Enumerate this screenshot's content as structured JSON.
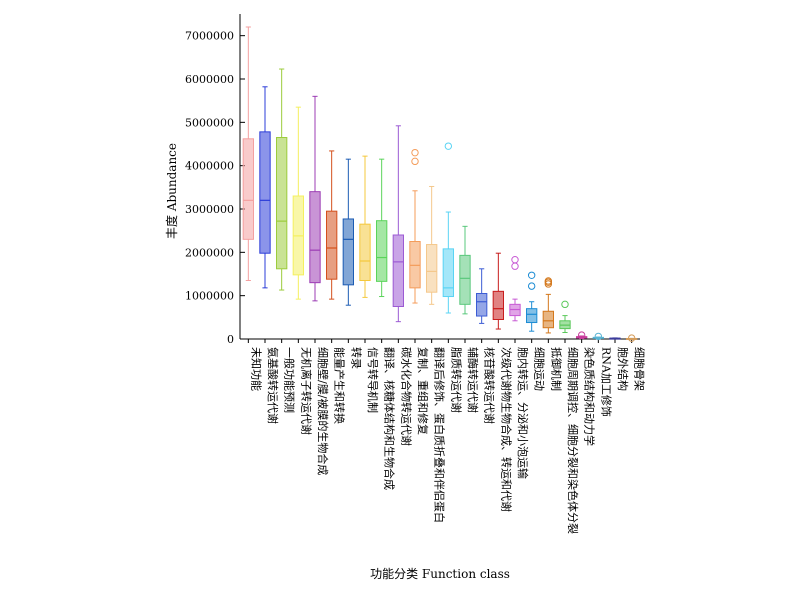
{
  "chart_data": {
    "type": "box",
    "xlabel": "功能分类 Function class",
    "ylabel": "丰度 Abundance",
    "ylim": [
      0,
      7500000
    ],
    "yticks": [
      0,
      1000000,
      2000000,
      3000000,
      4000000,
      5000000,
      6000000,
      7000000
    ],
    "grid": false,
    "legend": "none",
    "categories": [
      "未知功能",
      "氨基酸转运代谢",
      "一般功能预测",
      "无机离子转运代谢",
      "细胞壁/膜/被膜的生物合成",
      "能量产生和转换",
      "转录",
      "信号转导机制",
      "翻译、核糖体结构和生物合成",
      "碳水化合物转运代谢",
      "复制、重组和修复",
      "翻译后修饰、蛋白质折叠和伴侣蛋白",
      "脂质转运代谢",
      "辅酶转运代谢",
      "核苷酸转运代谢",
      "次级代谢物生物合成、转运和代谢",
      "胞内转运、分泌和小泡运输",
      "细胞运动",
      "抵御机制",
      "细胞周期调控、细胞分裂和染色体分裂",
      "染色质结构和动力学",
      "RNA加工修饰",
      "胞外结构",
      "细胞骨架"
    ],
    "colors": [
      "#f4a0a0",
      "#2b3cd8",
      "#9ccc3c",
      "#f4f060",
      "#9c3cb4",
      "#d4501c",
      "#1c5cb4",
      "#f4c83c",
      "#5ad45a",
      "#9c5ad4",
      "#f49c5a",
      "#f4c88c",
      "#5ad4f4",
      "#5ac87c",
      "#3c5cd4",
      "#c81c1c",
      "#c85ad4",
      "#1c8cd4",
      "#d4781c",
      "#5ac85a",
      "#c83c9c",
      "#5ab4d4",
      "#3c3c9c",
      "#d49c5a"
    ],
    "boxes": [
      {
        "min": 1350000,
        "q1": 2300000,
        "median": 3200000,
        "q3": 4620000,
        "max": 7200000,
        "outliers": []
      },
      {
        "min": 1180000,
        "q1": 1980000,
        "median": 3200000,
        "q3": 4780000,
        "max": 5820000,
        "outliers": []
      },
      {
        "min": 1130000,
        "q1": 1620000,
        "median": 2720000,
        "q3": 4650000,
        "max": 6230000,
        "outliers": []
      },
      {
        "min": 920000,
        "q1": 1480000,
        "median": 2380000,
        "q3": 3300000,
        "max": 5350000,
        "outliers": []
      },
      {
        "min": 880000,
        "q1": 1300000,
        "median": 2050000,
        "q3": 3400000,
        "max": 5600000,
        "outliers": []
      },
      {
        "min": 920000,
        "q1": 1380000,
        "median": 2100000,
        "q3": 2950000,
        "max": 4340000,
        "outliers": []
      },
      {
        "min": 780000,
        "q1": 1250000,
        "median": 2300000,
        "q3": 2770000,
        "max": 4150000,
        "outliers": []
      },
      {
        "min": 960000,
        "q1": 1350000,
        "median": 1800000,
        "q3": 2650000,
        "max": 4220000,
        "outliers": []
      },
      {
        "min": 980000,
        "q1": 1330000,
        "median": 1880000,
        "q3": 2730000,
        "max": 4150000,
        "outliers": []
      },
      {
        "min": 400000,
        "q1": 750000,
        "median": 1780000,
        "q3": 2400000,
        "max": 4920000,
        "outliers": []
      },
      {
        "min": 830000,
        "q1": 1180000,
        "median": 1700000,
        "q3": 2250000,
        "max": 3420000,
        "outliers": [
          4100000,
          4300000
        ]
      },
      {
        "min": 800000,
        "q1": 1080000,
        "median": 1560000,
        "q3": 2180000,
        "max": 3520000,
        "outliers": []
      },
      {
        "min": 600000,
        "q1": 980000,
        "median": 1180000,
        "q3": 2080000,
        "max": 2930000,
        "outliers": [
          4450000
        ]
      },
      {
        "min": 580000,
        "q1": 800000,
        "median": 1400000,
        "q3": 1930000,
        "max": 2600000,
        "outliers": []
      },
      {
        "min": 360000,
        "q1": 530000,
        "median": 860000,
        "q3": 1050000,
        "max": 1620000,
        "outliers": []
      },
      {
        "min": 230000,
        "q1": 450000,
        "median": 700000,
        "q3": 1100000,
        "max": 1980000,
        "outliers": []
      },
      {
        "min": 420000,
        "q1": 540000,
        "median": 680000,
        "q3": 800000,
        "max": 920000,
        "outliers": [
          1680000,
          1830000
        ]
      },
      {
        "min": 180000,
        "q1": 380000,
        "median": 570000,
        "q3": 700000,
        "max": 860000,
        "outliers": [
          1220000,
          1470000
        ]
      },
      {
        "min": 140000,
        "q1": 260000,
        "median": 420000,
        "q3": 640000,
        "max": 1030000,
        "outliers": [
          1270000,
          1310000,
          1340000
        ]
      },
      {
        "min": 150000,
        "q1": 240000,
        "median": 320000,
        "q3": 420000,
        "max": 540000,
        "outliers": [
          800000
        ]
      },
      {
        "min": 10000,
        "q1": 25000,
        "median": 40000,
        "q3": 55000,
        "max": 70000,
        "outliers": [
          90000
        ]
      },
      {
        "min": 10000,
        "q1": 20000,
        "median": 30000,
        "q3": 38000,
        "max": 45000,
        "outliers": [
          60000
        ]
      },
      {
        "min": 5000,
        "q1": 10000,
        "median": 15000,
        "q3": 20000,
        "max": 25000,
        "outliers": []
      },
      {
        "min": 3000,
        "q1": 6000,
        "median": 9000,
        "q3": 12000,
        "max": 15000,
        "outliers": [
          20000
        ]
      }
    ]
  }
}
